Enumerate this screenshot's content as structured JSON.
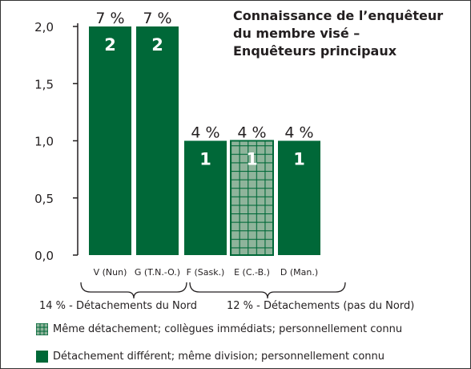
{
  "title_lines": [
    "Connaissance de l’enquêteur",
    "du membre visé –",
    "Enquêteurs principaux"
  ],
  "colors": {
    "bar": "#006838",
    "hatch_bg": "#8fb49b",
    "hatch_line": "#006838",
    "axis": "#231f20"
  },
  "chart_data": {
    "type": "bar",
    "categories": [
      "V (Nun)",
      "G (T.N.-O.)",
      "F (Sask.)",
      "E (C.-B.)",
      "D (Man.)"
    ],
    "values": [
      2,
      2,
      1,
      1,
      1
    ],
    "value_labels": [
      "2",
      "2",
      "1",
      "1",
      "1"
    ],
    "percent_labels": [
      "7 %",
      "7 %",
      "4 %",
      "4 %",
      "4 %"
    ],
    "styles": [
      "solid",
      "solid",
      "solid",
      "grid",
      "solid"
    ],
    "ylim": [
      0,
      2
    ],
    "yticks": [
      0,
      0.5,
      1,
      1.5,
      2
    ],
    "ytick_labels": [
      "0,0",
      "0,5",
      "1,0",
      "1,5",
      "2,0"
    ],
    "groups": [
      {
        "label": "14 % - Détachements du Nord",
        "from": 0,
        "to": 1
      },
      {
        "label": "12 % - Détachements (pas du Nord)",
        "from": 2,
        "to": 4
      }
    ],
    "legend": [
      {
        "style": "grid",
        "label": "Même détachement; collègues immédiats; personnellement connu"
      },
      {
        "style": "solid",
        "label": "Détachement différent; même division; personnellement connu"
      }
    ]
  }
}
